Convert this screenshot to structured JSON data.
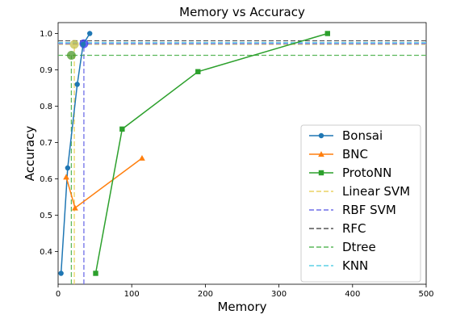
{
  "chart_data": {
    "type": "line",
    "title": "Memory vs Accuracy",
    "xlabel": "Memory",
    "ylabel": "Accuracy",
    "xlim": [
      0,
      500
    ],
    "ylim": [
      0.31,
      1.03
    ],
    "xticks": [
      0,
      100,
      200,
      300,
      400,
      500
    ],
    "yticks": [
      0.4,
      0.5,
      0.6,
      0.7,
      0.8,
      0.9,
      1.0
    ],
    "ytick_labels": [
      "0.4",
      "0.5",
      "0.6",
      "0.7",
      "0.8",
      "0.9",
      "1.0"
    ],
    "legend_position": "lower right",
    "series": [
      {
        "name": "Bonsai",
        "color": "#1f77b4",
        "marker": "circle",
        "x": [
          4,
          13,
          26,
          34,
          43
        ],
        "y": [
          0.34,
          0.63,
          0.86,
          0.97,
          1.0
        ]
      },
      {
        "name": "BNC",
        "color": "#ff7f0e",
        "marker": "triangle",
        "x": [
          11,
          23,
          114
        ],
        "y": [
          0.605,
          0.52,
          0.657
        ]
      },
      {
        "name": "ProtoNN",
        "color": "#2ca02c",
        "marker": "square",
        "x": [
          51,
          87,
          190,
          366
        ],
        "y": [
          0.34,
          0.737,
          0.895,
          1.0
        ]
      }
    ],
    "reference_lines": [
      {
        "name": "Linear SVM",
        "color": "#ead263",
        "memory": 22,
        "accuracy": 0.97
      },
      {
        "name": "RBF SVM",
        "color": "#6f6fe8",
        "memory": 35,
        "accuracy": 0.972
      },
      {
        "name": "RFC",
        "color": "#555555",
        "memory": 0,
        "accuracy": 0.98
      },
      {
        "name": "Dtree",
        "color": "#5cb85c",
        "memory": 18,
        "accuracy": 0.94
      },
      {
        "name": "KNN",
        "color": "#5bd0e6",
        "memory": 0,
        "accuracy": 0.975
      }
    ],
    "highlight_points": [
      {
        "color": "#c6c04a",
        "x": 22,
        "y": 0.97
      },
      {
        "color": "#2f2ff0",
        "x": 35,
        "y": 0.972
      },
      {
        "color": "#4c9a2a",
        "x": 18,
        "y": 0.94
      }
    ]
  }
}
